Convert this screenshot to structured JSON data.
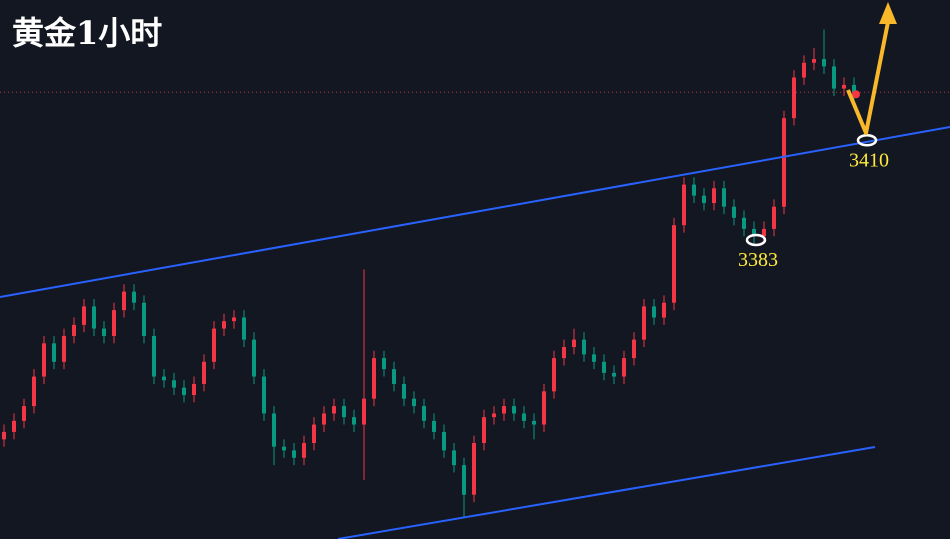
{
  "chart_data": {
    "type": "candlestick",
    "title": "黄金1小时",
    "ylim": [
      3302,
      3448
    ],
    "up_color": "#f23645",
    "down_color": "#089981",
    "open": [
      3329,
      3331,
      3334,
      3338,
      3346,
      3355,
      3350,
      3357,
      3360,
      3365,
      3359,
      3357,
      3364,
      3369,
      3366,
      3357,
      3346,
      3345,
      3343,
      3341,
      3344,
      3350,
      3359,
      3361,
      3362,
      3356,
      3346,
      3336,
      3327,
      3326,
      3324,
      3328,
      3333,
      3336,
      3338,
      3335,
      3333,
      3340,
      3351,
      3348,
      3344,
      3340,
      3338,
      3334,
      3331,
      3326,
      3322,
      3314,
      3328,
      3335,
      3336,
      3338,
      3336,
      3334,
      3333,
      3342,
      3351,
      3354,
      3356,
      3352,
      3350,
      3347,
      3346,
      3351,
      3356,
      3365,
      3362,
      3366,
      3387,
      3398,
      3395,
      3393,
      3397,
      3392,
      3389,
      3386,
      3384,
      3386,
      3392,
      3416,
      3427,
      3431,
      3432,
      3430,
      3424,
      3425
    ],
    "high": [
      3333,
      3336,
      3340,
      3348,
      3357,
      3357,
      3359,
      3362,
      3367,
      3367,
      3361,
      3366,
      3371,
      3371,
      3368,
      3359,
      3348,
      3347,
      3345,
      3346,
      3352,
      3361,
      3363,
      3364,
      3364,
      3358,
      3348,
      3338,
      3329,
      3328,
      3330,
      3335,
      3338,
      3340,
      3340,
      3337,
      3375,
      3353,
      3353,
      3350,
      3346,
      3342,
      3340,
      3336,
      3333,
      3328,
      3324,
      3330,
      3337,
      3338,
      3340,
      3340,
      3338,
      3336,
      3344,
      3353,
      3356,
      3359,
      3358,
      3354,
      3352,
      3349,
      3353,
      3358,
      3367,
      3367,
      3368,
      3389,
      3400,
      3400,
      3397,
      3399,
      3399,
      3394,
      3391,
      3388,
      3388,
      3394,
      3418,
      3429,
      3433,
      3435,
      3440,
      3432,
      3427,
      3427
    ],
    "low": [
      3327,
      3329,
      3332,
      3336,
      3344,
      3348,
      3348,
      3355,
      3358,
      3357,
      3355,
      3355,
      3362,
      3364,
      3355,
      3344,
      3343,
      3341,
      3339,
      3339,
      3342,
      3348,
      3357,
      3359,
      3354,
      3344,
      3334,
      3322,
      3324,
      3322,
      3322,
      3326,
      3331,
      3334,
      3333,
      3331,
      3318,
      3338,
      3346,
      3342,
      3338,
      3336,
      3332,
      3329,
      3324,
      3320,
      3308,
      3312,
      3326,
      3333,
      3334,
      3334,
      3332,
      3329,
      3331,
      3340,
      3349,
      3352,
      3350,
      3348,
      3345,
      3344,
      3344,
      3349,
      3354,
      3360,
      3360,
      3364,
      3385,
      3393,
      3391,
      3391,
      3390,
      3387,
      3384,
      3382,
      3382,
      3384,
      3390,
      3414,
      3425,
      3429,
      3428,
      3422,
      3422,
      3421
    ],
    "close": [
      3331,
      3334,
      3338,
      3346,
      3355,
      3350,
      3357,
      3360,
      3365,
      3359,
      3357,
      3364,
      3369,
      3366,
      3357,
      3346,
      3345,
      3343,
      3341,
      3344,
      3350,
      3359,
      3361,
      3362,
      3356,
      3346,
      3336,
      3327,
      3326,
      3324,
      3328,
      3333,
      3336,
      3338,
      3335,
      3333,
      3340,
      3351,
      3348,
      3344,
      3340,
      3338,
      3334,
      3331,
      3326,
      3322,
      3314,
      3328,
      3335,
      3336,
      3338,
      3336,
      3334,
      3333,
      3342,
      3351,
      3354,
      3356,
      3352,
      3350,
      3347,
      3346,
      3351,
      3356,
      3365,
      3362,
      3366,
      3387,
      3398,
      3395,
      3393,
      3397,
      3392,
      3389,
      3386,
      3384,
      3386,
      3392,
      3416,
      3427,
      3431,
      3432,
      3430,
      3424,
      3425,
      3423
    ],
    "price_line": 3423,
    "annotations": [
      {
        "value": 3383,
        "color": "#ffeb3b"
      },
      {
        "value": 3410,
        "color": "#ffeb3b"
      }
    ]
  }
}
